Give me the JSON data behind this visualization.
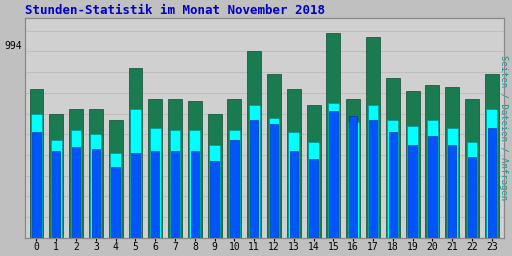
{
  "title": "Stunden-Statistik im Monat November 2018",
  "ylabel_right": "Seiten / Dateien / Anfragen",
  "ytick_label": "994",
  "ytick_pos": 0.93,
  "hours": [
    0,
    1,
    2,
    3,
    4,
    5,
    6,
    7,
    8,
    9,
    10,
    11,
    12,
    13,
    14,
    15,
    16,
    17,
    18,
    19,
    20,
    21,
    22,
    23
  ],
  "bar_green": [
    0.72,
    0.6,
    0.62,
    0.62,
    0.57,
    0.82,
    0.67,
    0.67,
    0.66,
    0.6,
    0.67,
    0.9,
    0.79,
    0.72,
    0.64,
    0.99,
    0.67,
    0.97,
    0.77,
    0.71,
    0.74,
    0.73,
    0.67,
    0.79
  ],
  "bar_cyan": [
    0.6,
    0.47,
    0.52,
    0.5,
    0.41,
    0.62,
    0.53,
    0.52,
    0.52,
    0.45,
    0.52,
    0.64,
    0.58,
    0.51,
    0.46,
    0.65,
    0.56,
    0.64,
    0.57,
    0.54,
    0.57,
    0.53,
    0.46,
    0.62
  ],
  "bar_blue": [
    0.51,
    0.42,
    0.44,
    0.43,
    0.34,
    0.41,
    0.42,
    0.42,
    0.42,
    0.37,
    0.47,
    0.57,
    0.55,
    0.42,
    0.38,
    0.61,
    0.59,
    0.57,
    0.51,
    0.45,
    0.49,
    0.45,
    0.39,
    0.53
  ],
  "color_green": "#1a7a50",
  "color_cyan": "#00ffff",
  "color_blue": "#0055ff",
  "edge_green": "#0d4d30",
  "edge_cyan": "#009999",
  "edge_blue": "#0033bb",
  "bw_green": 0.7,
  "bw_cyan": 0.55,
  "bw_blue": 0.42,
  "bg_color": "#c0c0c0",
  "plot_bg": "#d0d0d0",
  "title_color": "#0000cc",
  "right_label_color": "#009999",
  "grid_color": "#bbbbbb",
  "ylim_max": 1.06
}
